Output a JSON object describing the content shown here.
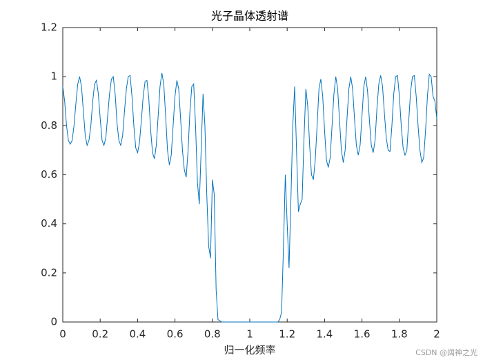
{
  "chart_data": {
    "type": "line",
    "title": "光子晶体透射谱",
    "x_label": "归一化频率",
    "watermark": "CSDN @阔神之光",
    "xlim": [
      0,
      2
    ],
    "ylim": [
      0,
      1.2
    ],
    "xticks": [
      0,
      0.2,
      0.4,
      0.6,
      0.8,
      1,
      1.2,
      1.4,
      1.6,
      1.8,
      2
    ],
    "yticks": [
      0,
      0.2,
      0.4,
      0.6,
      0.8,
      1,
      1.2
    ],
    "x": [
      0,
      0.01,
      0.02,
      0.03,
      0.04,
      0.05,
      0.06,
      0.07,
      0.08,
      0.09,
      0.1,
      0.11,
      0.12,
      0.13,
      0.14,
      0.15,
      0.16,
      0.17,
      0.18,
      0.19,
      0.2,
      0.21,
      0.22,
      0.23,
      0.24,
      0.25,
      0.26,
      0.27,
      0.28,
      0.29,
      0.3,
      0.31,
      0.32,
      0.33,
      0.34,
      0.35,
      0.36,
      0.37,
      0.38,
      0.39,
      0.4,
      0.41,
      0.42,
      0.43,
      0.44,
      0.45,
      0.46,
      0.47,
      0.48,
      0.49,
      0.5,
      0.51,
      0.52,
      0.53,
      0.54,
      0.55,
      0.56,
      0.57,
      0.58,
      0.59,
      0.6,
      0.61,
      0.62,
      0.63,
      0.64,
      0.65,
      0.66,
      0.67,
      0.68,
      0.69,
      0.7,
      0.71,
      0.72,
      0.73,
      0.74,
      0.75,
      0.76,
      0.77,
      0.78,
      0.79,
      0.8,
      0.81,
      0.82,
      0.83,
      0.84,
      0.85,
      0.86,
      0.87,
      0.88,
      0.89,
      0.9,
      0.91,
      0.92,
      0.93,
      0.94,
      0.95,
      0.96,
      0.97,
      0.98,
      0.99,
      1,
      1.01,
      1.02,
      1.03,
      1.04,
      1.05,
      1.06,
      1.07,
      1.08,
      1.09,
      1.1,
      1.11,
      1.12,
      1.13,
      1.14,
      1.15,
      1.16,
      1.17,
      1.18,
      1.19,
      1.2,
      1.21,
      1.22,
      1.23,
      1.24,
      1.25,
      1.26,
      1.27,
      1.28,
      1.29,
      1.3,
      1.31,
      1.32,
      1.33,
      1.34,
      1.35,
      1.36,
      1.37,
      1.38,
      1.39,
      1.4,
      1.41,
      1.42,
      1.43,
      1.44,
      1.45,
      1.46,
      1.47,
      1.48,
      1.49,
      1.5,
      1.51,
      1.52,
      1.53,
      1.54,
      1.55,
      1.56,
      1.57,
      1.58,
      1.59,
      1.6,
      1.61,
      1.62,
      1.63,
      1.64,
      1.65,
      1.66,
      1.67,
      1.68,
      1.69,
      1.7,
      1.71,
      1.72,
      1.73,
      1.74,
      1.75,
      1.76,
      1.77,
      1.78,
      1.79,
      1.8,
      1.81,
      1.82,
      1.83,
      1.84,
      1.85,
      1.86,
      1.87,
      1.88,
      1.89,
      1.9,
      1.91,
      1.92,
      1.93,
      1.94,
      1.95,
      1.96,
      1.97,
      1.98,
      1.99,
      2
    ],
    "series": [
      {
        "color": "#0072bd",
        "values": [
          0.96,
          0.9,
          0.8,
          0.74,
          0.725,
          0.74,
          0.8,
          0.89,
          0.97,
          1.0,
          0.96,
          0.86,
          0.76,
          0.72,
          0.74,
          0.8,
          0.9,
          0.97,
          0.985,
          0.93,
          0.83,
          0.74,
          0.72,
          0.75,
          0.84,
          0.93,
          0.99,
          1.0,
          0.93,
          0.81,
          0.74,
          0.72,
          0.76,
          0.86,
          0.95,
          1.0,
          1.005,
          0.92,
          0.8,
          0.71,
          0.69,
          0.73,
          0.82,
          0.92,
          0.98,
          0.985,
          0.91,
          0.78,
          0.69,
          0.665,
          0.72,
          0.84,
          0.96,
          1.015,
          0.97,
          0.84,
          0.7,
          0.64,
          0.68,
          0.8,
          0.92,
          0.985,
          0.95,
          0.83,
          0.7,
          0.62,
          0.59,
          0.7,
          0.86,
          0.96,
          0.97,
          0.8,
          0.57,
          0.48,
          0.7,
          0.93,
          0.8,
          0.52,
          0.31,
          0.26,
          0.58,
          0.52,
          0.13,
          0.01,
          0.005,
          0,
          0,
          0,
          0,
          0,
          0,
          0,
          0,
          0,
          0,
          0,
          0,
          0,
          0,
          0,
          0,
          0,
          0,
          0,
          0,
          0,
          0,
          0,
          0,
          0,
          0,
          0,
          0,
          0,
          0,
          0,
          0.01,
          0.04,
          0.3,
          0.6,
          0.4,
          0.22,
          0.5,
          0.8,
          0.96,
          0.7,
          0.45,
          0.48,
          0.5,
          0.75,
          0.95,
          0.88,
          0.72,
          0.6,
          0.58,
          0.66,
          0.8,
          0.95,
          0.99,
          0.92,
          0.78,
          0.66,
          0.63,
          0.67,
          0.8,
          0.93,
          1.0,
          0.95,
          0.82,
          0.7,
          0.65,
          0.7,
          0.83,
          0.95,
          1.0,
          0.95,
          0.83,
          0.72,
          0.68,
          0.72,
          0.84,
          0.96,
          1.0,
          0.94,
          0.82,
          0.72,
          0.69,
          0.74,
          0.87,
          0.97,
          1.005,
          0.96,
          0.85,
          0.75,
          0.7,
          0.695,
          0.8,
          0.93,
          1.0,
          1.005,
          0.92,
          0.8,
          0.71,
          0.68,
          0.7,
          0.82,
          0.94,
          1.0,
          1.005,
          0.92,
          0.8,
          0.7,
          0.65,
          0.67,
          0.78,
          0.92,
          1.01,
          1.0,
          0.92,
          0.9,
          0.83
        ]
      }
    ]
  }
}
